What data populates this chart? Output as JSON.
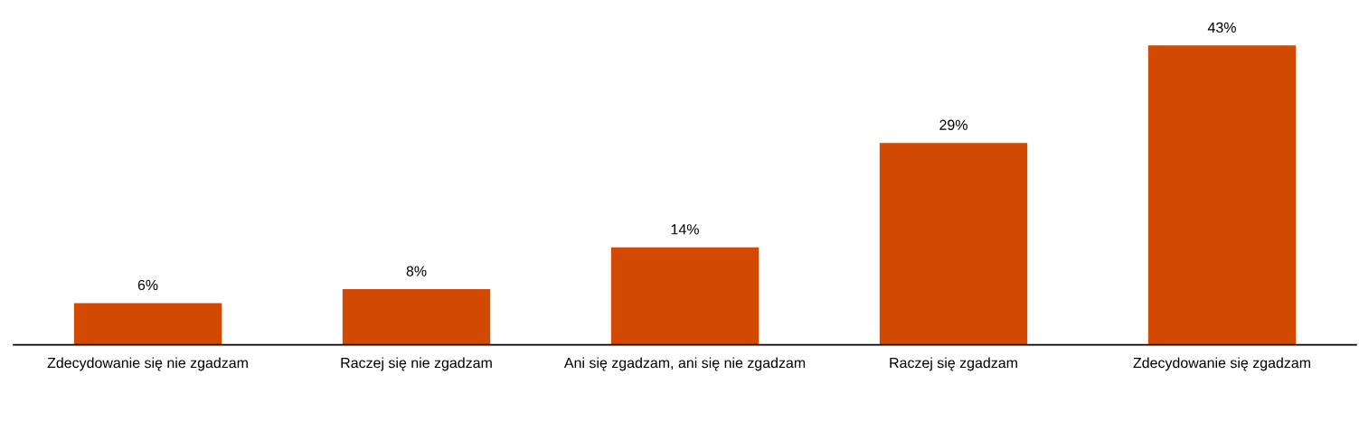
{
  "chart_data": {
    "type": "bar",
    "categories": [
      "Zdecydowanie się nie zgadzam",
      "Raczej się nie zgadzam",
      "Ani się zgadzam, ani się nie zgadzam",
      "Raczej się zgadzam",
      "Zdecydowanie się zgadzam"
    ],
    "values": [
      6,
      8,
      14,
      29,
      43
    ],
    "value_labels": [
      "6%",
      "8%",
      "14%",
      "29%",
      "43%"
    ],
    "color": "#d24a02",
    "grid": false,
    "legend": false
  }
}
